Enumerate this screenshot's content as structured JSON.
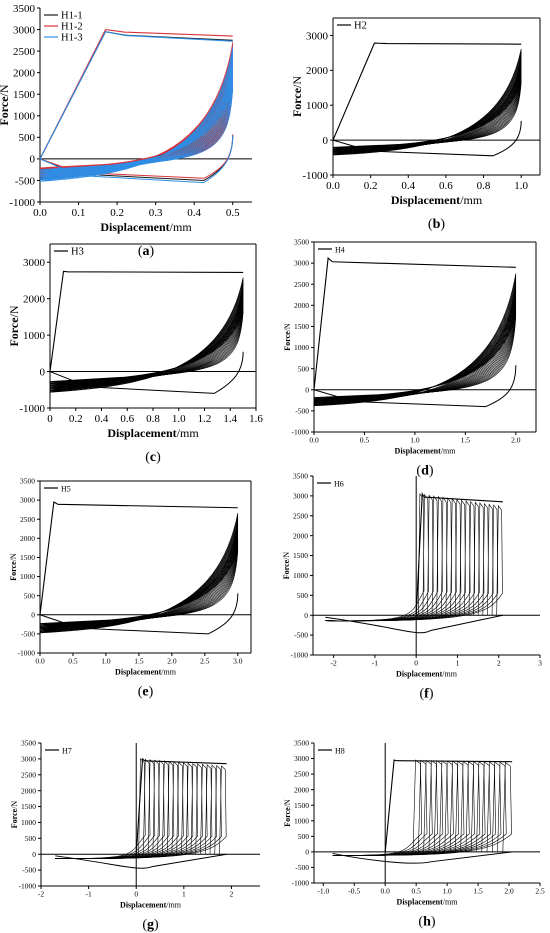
{
  "chart_data": [
    {
      "panel": "(a)",
      "type": "line",
      "xlabel": "Displacement/mm",
      "ylabel": "Force/N",
      "xlim": [
        0,
        0.55
      ],
      "ylim": [
        -1000,
        3500
      ],
      "xticks": [
        "0.0",
        "0.1",
        "0.2",
        "0.3",
        "0.4",
        "0.5"
      ],
      "yticks": [
        "-1000",
        "-500",
        "0",
        "500",
        "1000",
        "1500",
        "2000",
        "2500",
        "3000",
        "3500"
      ],
      "legend": "top-left",
      "series": [
        {
          "name": "H1-1",
          "color": "#1a1a1a",
          "peak_force": 2950,
          "plateau_force": 2750,
          "max_displacement": 0.5,
          "min_force": -500
        },
        {
          "name": "H1-2",
          "color": "#d9323c",
          "peak_force": 3000,
          "plateau_force": 2850,
          "max_displacement": 0.5,
          "min_force": -450
        },
        {
          "name": "H1-3",
          "color": "#2e8ee6",
          "peak_force": 2950,
          "plateau_force": 2730,
          "max_displacement": 0.5,
          "min_force": -550
        }
      ]
    },
    {
      "panel": "(b)",
      "type": "line",
      "xlabel": "Displacement/mm",
      "ylabel": "Force/N",
      "xlim": [
        0,
        1.1
      ],
      "ylim": [
        -1000,
        3500
      ],
      "xticks": [
        "0.0",
        "0.2",
        "0.4",
        "0.6",
        "0.8",
        "1.0"
      ],
      "yticks": [
        "-1000",
        "0",
        "1000",
        "2000",
        "3000"
      ],
      "legend": "top-left",
      "series": [
        {
          "name": "H2",
          "color": "#000000",
          "peak_force": 2780,
          "plateau_force": 2750,
          "max_displacement": 1.0,
          "min_force": -450
        }
      ]
    },
    {
      "panel": "(c)",
      "type": "line",
      "xlabel": "Displacement/mm",
      "ylabel": "Force/N",
      "xlim": [
        0,
        1.6
      ],
      "ylim": [
        -1000,
        3500
      ],
      "xticks": [
        "0",
        "0.2",
        "0.4",
        "0.6",
        "0.8",
        "1.0",
        "1.2",
        "1.4",
        "1.6"
      ],
      "yticks": [
        "-1000",
        "0",
        "1000",
        "2000",
        "3000"
      ],
      "legend": "top-left",
      "series": [
        {
          "name": "H3",
          "color": "#000000",
          "peak_force": 2750,
          "plateau_force": 2720,
          "max_displacement": 1.5,
          "min_force": -600
        }
      ]
    },
    {
      "panel": "(d)",
      "type": "line",
      "xlabel": "Displacement/mm",
      "ylabel": "Force/N",
      "xlim": [
        0,
        2.2
      ],
      "ylim": [
        -1000,
        3500
      ],
      "xticks": [
        "0.0",
        "0.5",
        "1.0",
        "1.5",
        "2.0"
      ],
      "yticks": [
        "-1000",
        "-500",
        "0",
        "500",
        "1000",
        "1500",
        "2000",
        "2500",
        "3000",
        "3500"
      ],
      "legend": "top-left",
      "series": [
        {
          "name": "H4",
          "color": "#000000",
          "peak_force": 3120,
          "plateau_force": 2900,
          "max_displacement": 2.0,
          "min_force": -400
        }
      ]
    },
    {
      "panel": "(e)",
      "type": "line",
      "xlabel": "Displacement/mm",
      "ylabel": "Force/N",
      "xlim": [
        0,
        3.2
      ],
      "ylim": [
        -1000,
        3500
      ],
      "xticks": [
        "0.0",
        "0.5",
        "1.0",
        "1.5",
        "2.0",
        "2.5",
        "3.0"
      ],
      "yticks": [
        "-1000",
        "-500",
        "0",
        "500",
        "1000",
        "1500",
        "2000",
        "2500",
        "3000",
        "3500"
      ],
      "legend": "top-left",
      "series": [
        {
          "name": "H5",
          "color": "#000000",
          "peak_force": 2950,
          "plateau_force": 2800,
          "max_displacement": 3.0,
          "min_force": -500
        }
      ]
    },
    {
      "panel": "(f)",
      "type": "line",
      "xlabel": "Displacement/mm",
      "ylabel": "Force/N",
      "xlim": [
        -2.5,
        3.0
      ],
      "ylim": [
        -1000,
        3500
      ],
      "xticks": [
        "-2",
        "-1",
        "0",
        "1",
        "2",
        "3"
      ],
      "yticks": [
        "-1000",
        "-500",
        "0",
        "500",
        "1000",
        "1500",
        "2000",
        "2500",
        "3000",
        "3500"
      ],
      "legend": "top-left",
      "series": [
        {
          "name": "H6",
          "color": "#000000",
          "peak_force": 3050,
          "plateau_force": 2850,
          "max_displacement": 2.1,
          "min_force": -550
        }
      ]
    },
    {
      "panel": "(g)",
      "type": "line",
      "xlabel": "Displacement/mm",
      "ylabel": "Force/N",
      "xlim": [
        -2,
        2.6
      ],
      "ylim": [
        -1000,
        3500
      ],
      "xticks": [
        "-2",
        "-1",
        "0",
        "1",
        "2"
      ],
      "yticks": [
        "-1000",
        "-500",
        "0",
        "500",
        "1000",
        "1500",
        "2000",
        "2500",
        "3000",
        "3500"
      ],
      "legend": "top-left",
      "series": [
        {
          "name": "H7",
          "color": "#000000",
          "peak_force": 3000,
          "plateau_force": 2850,
          "max_displacement": 1.9,
          "min_force": -550
        }
      ]
    },
    {
      "panel": "(h)",
      "type": "line",
      "xlabel": "Displacement/mm",
      "ylabel": "Force/N",
      "xlim": [
        -1.15,
        2.5
      ],
      "ylim": [
        -1000,
        3500
      ],
      "xticks": [
        "-1.0",
        "-0.5",
        "0.0",
        "0.5",
        "1.0",
        "1.5",
        "2.0",
        "2.5"
      ],
      "yticks": [
        "-1000",
        "-500",
        "0",
        "500",
        "1000",
        "1500",
        "2000",
        "2500",
        "3000",
        "3500"
      ],
      "legend": "top-left",
      "series": [
        {
          "name": "H8",
          "color": "#000000",
          "peak_force": 2950,
          "plateau_force": 2900,
          "max_displacement": 2.05,
          "min_force": -450
        }
      ]
    }
  ]
}
